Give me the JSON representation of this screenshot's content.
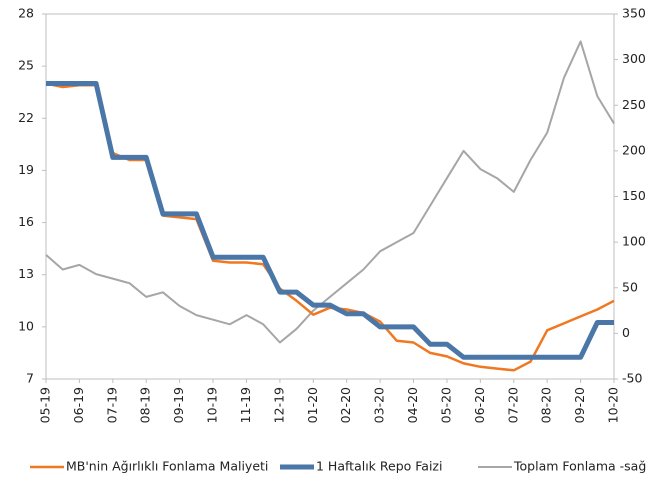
{
  "chart_data": {
    "type": "line",
    "categories": [
      "05-19",
      null,
      "06-19",
      null,
      "07-19",
      null,
      "08-19",
      null,
      "09-19",
      null,
      "10-19",
      null,
      "11-19",
      null,
      "12-19",
      null,
      "01-20",
      null,
      "02-20",
      null,
      "03-20",
      null,
      "04-20",
      null,
      "05-20",
      null,
      "06-20",
      null,
      "07-20",
      null,
      "08-20",
      null,
      "09-20",
      null,
      "10-20"
    ],
    "series": [
      {
        "name": "MB'nin Ağırlıklı Fonlama Maliyeti",
        "color": "#f07820",
        "width": 2.5,
        "values": [
          24,
          23.8,
          23.9,
          23.9,
          20,
          19.6,
          19.6,
          16.4,
          16.3,
          16.2,
          13.8,
          13.7,
          13.7,
          13.6,
          12.2,
          11.5,
          10.7,
          11.1,
          11,
          10.8,
          10.3,
          9.2,
          9.1,
          8.5,
          8.3,
          7.9,
          7.7,
          7.6,
          7.5,
          8,
          9.8,
          10.2,
          10.6,
          11,
          11.5
        ]
      },
      {
        "name": "1 Haftalık Repo Faizi",
        "color": "#4a76a8",
        "width": 5,
        "values": [
          24,
          24,
          24,
          24,
          19.75,
          19.75,
          19.75,
          16.5,
          16.5,
          16.5,
          14,
          14,
          14,
          14,
          12,
          12,
          11.25,
          11.25,
          10.75,
          10.75,
          10,
          10,
          10,
          9,
          9,
          8.25,
          8.25,
          8.25,
          8.25,
          8.25,
          8.25,
          8.25,
          8.25,
          10.25,
          10.25
        ]
      },
      {
        "name": "Toplam Fonlama -sağ",
        "color": "#a6a6a6",
        "width": 2,
        "axis": "y2",
        "values": [
          86,
          70,
          75,
          65,
          60,
          55,
          40,
          45,
          30,
          20,
          15,
          10,
          20,
          10,
          -10,
          5,
          25,
          40,
          55,
          70,
          90,
          100,
          110,
          140,
          170,
          200,
          180,
          170,
          155,
          190,
          220,
          280,
          320,
          260,
          230
        ]
      }
    ],
    "ylim": [
      7,
      28
    ],
    "yticks": [
      7,
      10,
      13,
      16,
      19,
      22,
      25,
      28
    ],
    "y2lim": [
      -50,
      350
    ],
    "y2ticks": [
      -50,
      0,
      50,
      100,
      150,
      200,
      250,
      300,
      350
    ],
    "legend": "bottom"
  }
}
